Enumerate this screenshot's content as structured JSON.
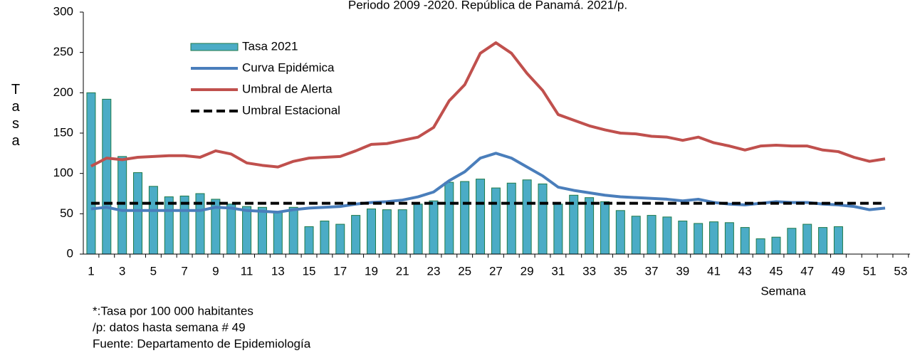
{
  "chart_data": {
    "type": "bar-line",
    "title": "Periodo 2009 -2020.  República de Panamá. 2021/p.",
    "y_label": "Tasa",
    "x_label": "Semana",
    "notes": [
      "*:Tasa por 100 000 habitantes",
      "/p: datos hasta semana # 49",
      "Fuente: Departamento de Epidemiología"
    ],
    "categories": [
      1,
      null,
      3,
      null,
      5,
      null,
      7,
      null,
      9,
      null,
      11,
      null,
      13,
      null,
      15,
      null,
      17,
      null,
      19,
      null,
      21,
      null,
      23,
      null,
      25,
      null,
      27,
      null,
      29,
      null,
      31,
      null,
      33,
      null,
      35,
      null,
      37,
      null,
      39,
      null,
      41,
      null,
      43,
      null,
      45,
      null,
      47,
      null,
      49,
      null,
      51,
      null,
      53
    ],
    "ylim": [
      0,
      300
    ],
    "yticks": [
      0,
      50,
      100,
      150,
      200,
      250,
      300
    ],
    "series": [
      {
        "name": "Tasa 2021",
        "kind": "bar",
        "color": "#4bacc6",
        "edge": "#1f7a4a",
        "values": [
          200,
          192,
          121,
          101,
          84,
          71,
          72,
          75,
          68,
          62,
          59,
          58,
          52,
          58,
          34,
          41,
          37,
          48,
          56,
          55,
          55,
          62,
          66,
          89,
          90,
          93,
          82,
          88,
          92,
          87,
          62,
          73,
          70,
          65,
          54,
          47,
          48,
          46,
          41,
          38,
          40,
          39,
          33,
          19,
          21,
          32,
          37,
          33,
          34,
          null,
          null,
          null,
          null
        ]
      },
      {
        "name": "Curva Epidémica",
        "kind": "line",
        "color": "#4a7ebb",
        "values": [
          56,
          58,
          54,
          54,
          54,
          54,
          54,
          54,
          58,
          57,
          54,
          53,
          52,
          55,
          57,
          58,
          59,
          62,
          64,
          65,
          67,
          71,
          77,
          91,
          102,
          119,
          125,
          119,
          108,
          97,
          83,
          79,
          76,
          73,
          71,
          70,
          69,
          68,
          66,
          68,
          64,
          62,
          61,
          63,
          65,
          64,
          64,
          62,
          61,
          59,
          55,
          57,
          null
        ]
      },
      {
        "name": "Umbral de Alerta",
        "kind": "line",
        "color": "#c0504d",
        "values": [
          109,
          119,
          117,
          120,
          121,
          122,
          122,
          120,
          128,
          124,
          113,
          110,
          108,
          115,
          119,
          120,
          121,
          128,
          136,
          137,
          141,
          145,
          157,
          190,
          210,
          249,
          262,
          249,
          224,
          203,
          173,
          166,
          159,
          154,
          150,
          149,
          146,
          145,
          141,
          145,
          138,
          134,
          129,
          134,
          135,
          134,
          134,
          129,
          127,
          120,
          115,
          118,
          null
        ]
      },
      {
        "name": "Umbral Estacional",
        "kind": "dashed",
        "color": "#000000",
        "values": [
          63,
          63,
          63,
          63,
          63,
          63,
          63,
          63,
          63,
          63,
          63,
          63,
          63,
          63,
          63,
          63,
          63,
          63,
          63,
          63,
          63,
          63,
          63,
          63,
          63,
          63,
          63,
          63,
          63,
          63,
          63,
          63,
          63,
          63,
          63,
          63,
          63,
          63,
          63,
          63,
          63,
          63,
          63,
          63,
          63,
          63,
          63,
          63,
          63,
          63,
          63,
          63,
          null
        ]
      }
    ]
  }
}
